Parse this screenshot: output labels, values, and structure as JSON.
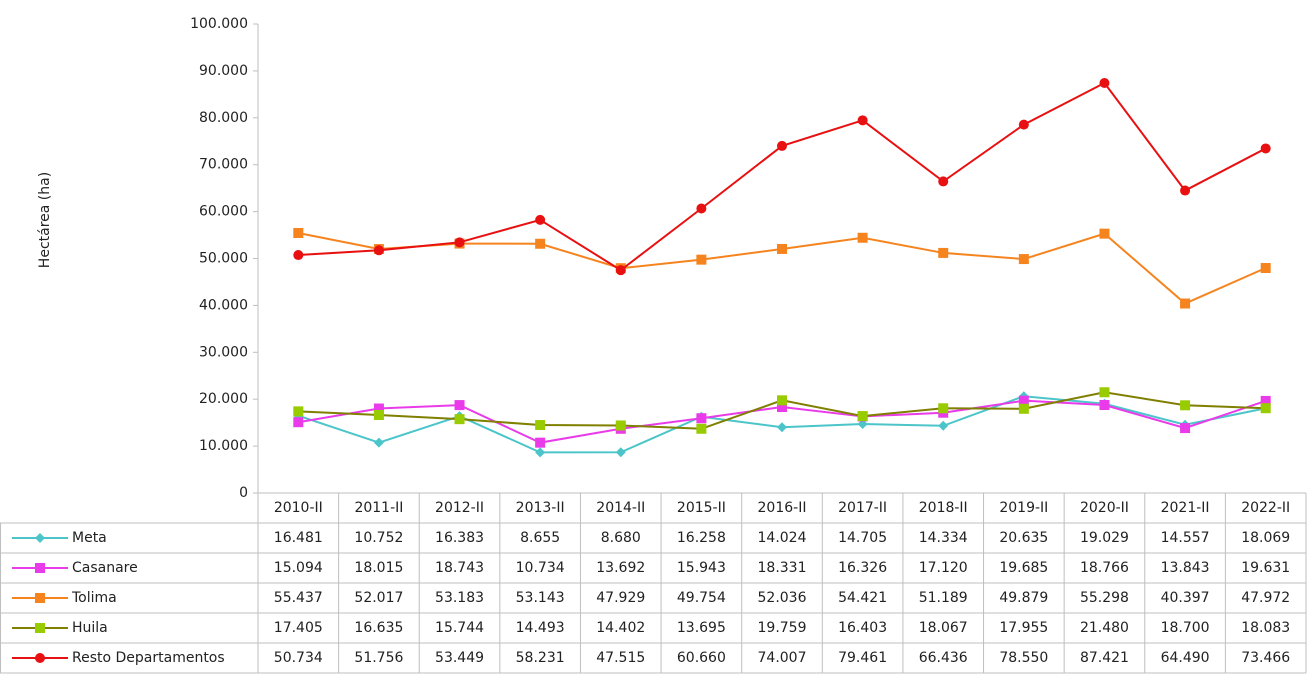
{
  "chart_data": {
    "type": "line",
    "y_label": "Hectárea (ha)",
    "categories": [
      "2010-II",
      "2011-II",
      "2012-II",
      "2013-II",
      "2014-II",
      "2015-II",
      "2016-II",
      "2017-II",
      "2018-II",
      "2019-II",
      "2020-II",
      "2021-II",
      "2022-II"
    ],
    "ylim": [
      0,
      100000
    ],
    "yticks": [
      0,
      {
        "value": 10000,
        "label": "10.000"
      },
      {
        "value": 20000,
        "label": "20.000"
      },
      {
        "value": 30000,
        "label": "30.000"
      },
      {
        "value": 40000,
        "label": "40.000"
      },
      {
        "value": 50000,
        "label": "50.000"
      },
      {
        "value": 60000,
        "label": "60.000"
      },
      {
        "value": 70000,
        "label": "70.000"
      },
      {
        "value": 80000,
        "label": "80.000"
      },
      {
        "value": 90000,
        "label": "90.000"
      },
      {
        "value": 100000,
        "label": "100.000"
      }
    ],
    "series": [
      {
        "name": "Meta",
        "color": "#4bc5c9",
        "marker": "diamond",
        "values": [
          16481,
          10752,
          16383,
          8655,
          8680,
          16258,
          14024,
          14705,
          14334,
          20635,
          19029,
          14557,
          18069
        ],
        "value_labels": [
          "16.481",
          "10.752",
          "16.383",
          "8.655",
          "8.680",
          "16.258",
          "14.024",
          "14.705",
          "14.334",
          "20.635",
          "19.029",
          "14.557",
          "18.069"
        ]
      },
      {
        "name": "Casanare",
        "color": "#e93be9",
        "marker": "square",
        "values": [
          15094,
          18015,
          18743,
          10734,
          13692,
          15943,
          18331,
          16326,
          17120,
          19685,
          18766,
          13843,
          19631
        ],
        "value_labels": [
          "15.094",
          "18.015",
          "18.743",
          "10.734",
          "13.692",
          "15.943",
          "18.331",
          "16.326",
          "17.120",
          "19.685",
          "18.766",
          "13.843",
          "19.631"
        ]
      },
      {
        "name": "Tolima",
        "color": "#f5841f",
        "marker": "square",
        "values": [
          55437,
          52017,
          53183,
          53143,
          47929,
          49754,
          52036,
          54421,
          51189,
          49879,
          55298,
          40397,
          47972
        ],
        "value_labels": [
          "55.437",
          "52.017",
          "53.183",
          "53.143",
          "47.929",
          "49.754",
          "52.036",
          "54.421",
          "51.189",
          "49.879",
          "55.298",
          "40.397",
          "47.972"
        ]
      },
      {
        "name": "Huila",
        "color": "#7f7f00",
        "marker": "square",
        "marker_color": "#99cc00",
        "values": [
          17405,
          16635,
          15744,
          14493,
          14402,
          13695,
          19759,
          16403,
          18067,
          17955,
          21480,
          18700,
          18083
        ],
        "value_labels": [
          "17.405",
          "16.635",
          "15.744",
          "14.493",
          "14.402",
          "13.695",
          "19.759",
          "16.403",
          "18.067",
          "17.955",
          "21.480",
          "18.700",
          "18.083"
        ]
      },
      {
        "name": "Resto Departamentos",
        "color": "#e81010",
        "marker": "circle",
        "values": [
          50734,
          51756,
          53449,
          58231,
          47515,
          60660,
          74007,
          79461,
          66436,
          78550,
          87421,
          64490,
          73466
        ],
        "value_labels": [
          "50.734",
          "51.756",
          "53.449",
          "58.231",
          "47.515",
          "60.660",
          "74.007",
          "79.461",
          "66.436",
          "78.550",
          "87.421",
          "64.490",
          "73.466"
        ]
      }
    ]
  }
}
